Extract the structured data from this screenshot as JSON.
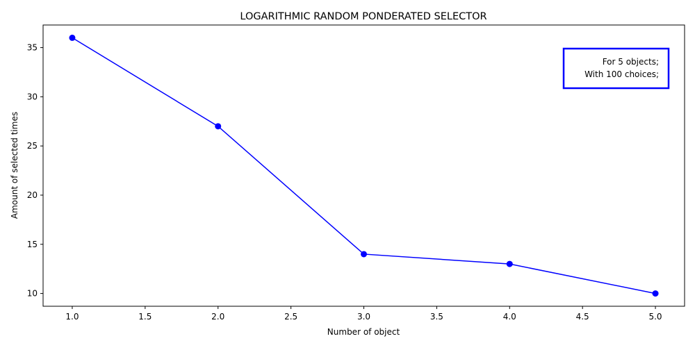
{
  "chart_data": {
    "type": "line",
    "title": "LOGARITHMIC RANDOM PONDERATED SELECTOR",
    "xlabel": "Number of object",
    "ylabel": "Amount of selected times",
    "x": [
      1,
      2,
      3,
      4,
      5
    ],
    "series": [
      {
        "values": [
          36,
          27,
          14,
          13,
          10
        ],
        "color": "#0000ff",
        "marker": "circle"
      }
    ],
    "xlim": [
      0.8,
      5.2
    ],
    "ylim": [
      8.7,
      37.3
    ],
    "xticks": [
      1.0,
      1.5,
      2.0,
      2.5,
      3.0,
      3.5,
      4.0,
      4.5,
      5.0
    ],
    "xtick_labels": [
      "1.0",
      "1.5",
      "2.0",
      "2.5",
      "3.0",
      "3.5",
      "4.0",
      "4.5",
      "5.0"
    ],
    "yticks": [
      10,
      15,
      20,
      25,
      30,
      35
    ],
    "ytick_labels": [
      "10",
      "15",
      "20",
      "25",
      "30",
      "35"
    ],
    "grid": false,
    "annotation": {
      "lines": [
        "For 5 objects;",
        "With 100 choices;"
      ],
      "placement": "top-right",
      "border_color": "#0000ff"
    }
  }
}
